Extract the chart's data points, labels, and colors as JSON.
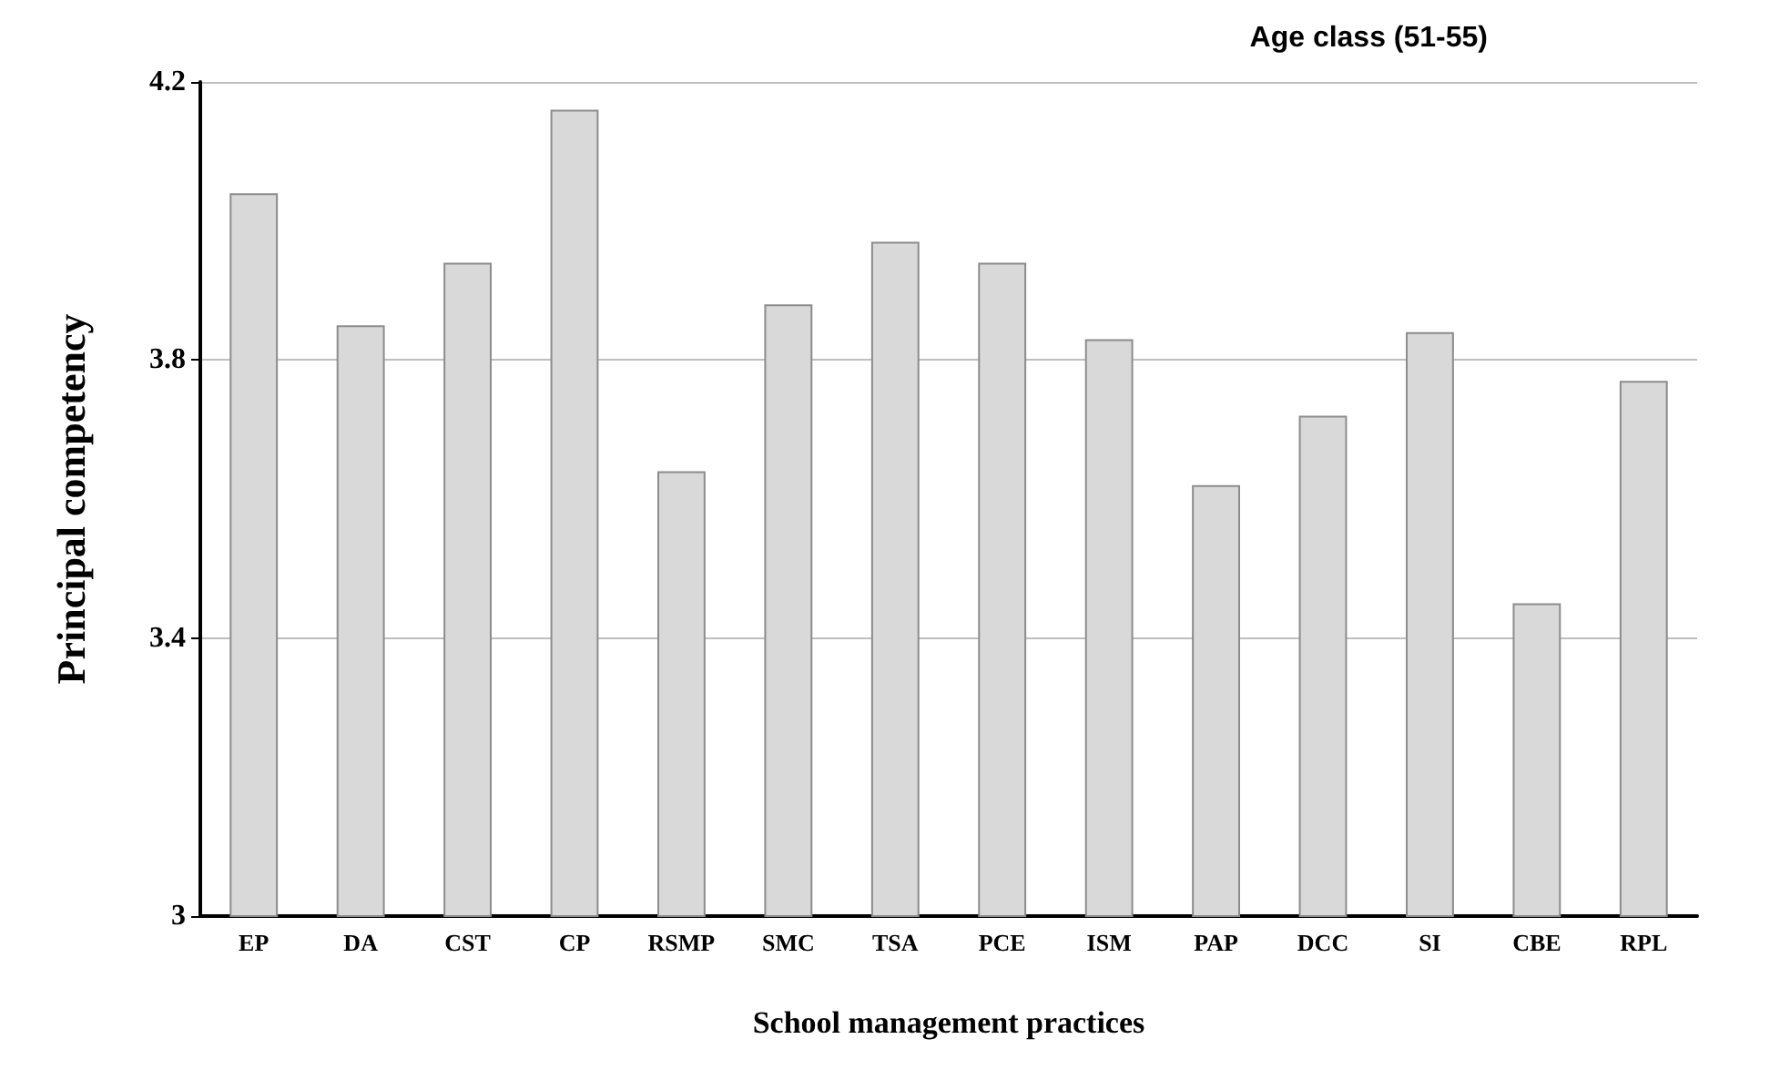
{
  "chart_data": {
    "type": "bar",
    "title": "Age class (51-55)",
    "xlabel": "School management practices",
    "ylabel": "Principal competency",
    "categories": [
      "EP",
      "DA",
      "CST",
      "CP",
      "RSMP",
      "SMC",
      "TSA",
      "PCE",
      "ISM",
      "PAP",
      "DCC",
      "SI",
      "CBE",
      "RPL"
    ],
    "values": [
      4.04,
      3.85,
      3.94,
      4.16,
      3.64,
      3.88,
      3.97,
      3.94,
      3.83,
      3.62,
      3.72,
      3.84,
      3.45,
      3.77
    ],
    "color": "#d9d9d9",
    "ylim": [
      3,
      4.2
    ],
    "yticks": [
      3,
      3.4,
      3.8,
      4.2
    ],
    "grid": "y"
  }
}
